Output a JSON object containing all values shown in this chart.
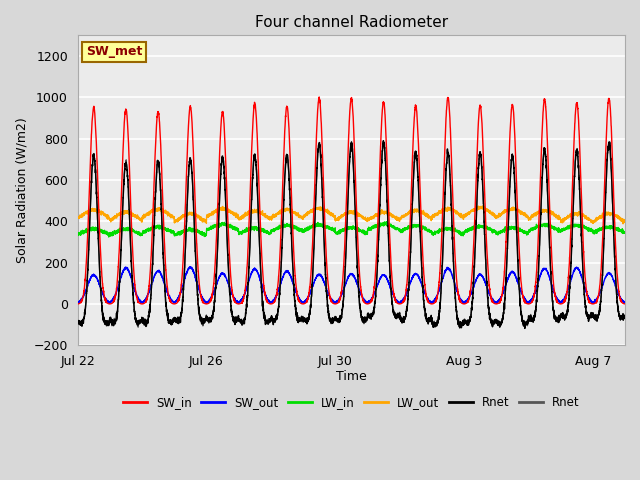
{
  "title": "Four channel Radiometer",
  "xlabel": "Time",
  "ylabel": "Solar Radiation (W/m2)",
  "ylim": [
    -200,
    1300
  ],
  "yticks": [
    -200,
    0,
    200,
    400,
    600,
    800,
    1000,
    1200
  ],
  "annotation_text": "SW_met",
  "annotation_bg": "#FFFF99",
  "annotation_border": "#996600",
  "background_color": "#D8D8D8",
  "plot_bg": "#EBEBEB",
  "n_days": 17,
  "colors": {
    "SW_in": "#FF0000",
    "SW_out": "#0000FF",
    "LW_in": "#00DD00",
    "LW_out": "#FFA500",
    "Rnet1": "#000000",
    "Rnet2": "#555555"
  },
  "legend_labels": [
    "SW_in",
    "SW_out",
    "LW_in",
    "LW_out",
    "Rnet",
    "Rnet"
  ],
  "xtick_labels": [
    "Jul 22",
    "Jul 26",
    "Jul 30",
    "Aug 3",
    "Aug 7"
  ],
  "xtick_positions": [
    0,
    4,
    8,
    12,
    16
  ]
}
